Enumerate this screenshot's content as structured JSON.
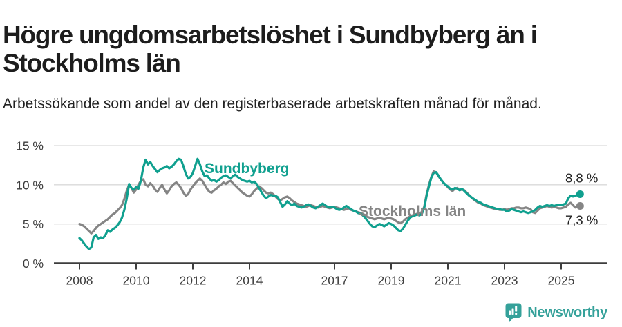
{
  "header": {
    "title": "Högre ungdomsarbetslöshet i Sundbyberg än i Stockholms län",
    "subtitle": "Arbetssökande som andel av den registerbaserade arbetskraften månad för månad."
  },
  "footer": {
    "brand": "Newsworthy"
  },
  "colors": {
    "accent_teal": "#10A08F",
    "series_gray": "#858585",
    "axis_text": "#3d3d3d",
    "gridline": "#d9d9d9",
    "end_label_text": "#222222",
    "brand_teal": "#35a19a",
    "title_text": "#1d1d1d"
  },
  "chart_data": {
    "type": "line",
    "title": "Högre ungdomsarbetslöshet i Sundbyberg än i Stockholms län",
    "subtitle": "Arbetssökande som andel av den registerbaserade arbetskraften månad för månad.",
    "x_unit": "month",
    "x_range": [
      "2008-01",
      "2025-09"
    ],
    "ylim": [
      0,
      15
    ],
    "grid": true,
    "ytick_values": [
      0,
      5,
      10,
      15
    ],
    "ytick_labels": [
      "0 %",
      "5 %",
      "10 %",
      "15 %"
    ],
    "xticks": [
      2008,
      2010,
      2012,
      2014,
      2017,
      2019,
      2021,
      2023,
      2025
    ],
    "series": [
      {
        "name": "Stockholms län",
        "color": "#858585",
        "end_label": "7,3 %",
        "end_value": 7.3,
        "values": [
          5.0,
          4.9,
          4.7,
          4.4,
          4.1,
          3.8,
          4.1,
          4.5,
          4.8,
          5.0,
          5.2,
          5.4,
          5.6,
          5.9,
          6.2,
          6.4,
          6.7,
          7.0,
          7.4,
          8.2,
          9.2,
          10.0,
          9.6,
          9.0,
          9.4,
          10.0,
          10.5,
          10.7,
          10.0,
          9.8,
          10.2,
          9.9,
          9.4,
          9.1,
          9.6,
          10.0,
          9.4,
          8.9,
          9.3,
          9.8,
          10.1,
          10.3,
          10.0,
          9.6,
          9.0,
          8.6,
          8.8,
          9.4,
          9.8,
          10.2,
          10.5,
          10.8,
          10.5,
          10.0,
          9.5,
          9.1,
          9.0,
          9.3,
          9.5,
          9.8,
          10.0,
          10.3,
          10.1,
          10.4,
          10.5,
          10.2,
          9.9,
          9.6,
          9.3,
          9.0,
          8.8,
          8.6,
          8.5,
          8.8,
          9.2,
          9.5,
          9.8,
          9.6,
          9.3,
          9.0,
          8.9,
          9.0,
          8.8,
          8.5,
          8.2,
          8.0,
          8.2,
          8.4,
          8.5,
          8.3,
          8.0,
          7.8,
          7.6,
          7.5,
          7.4,
          7.3,
          7.2,
          7.3,
          7.4,
          7.3,
          7.2,
          7.1,
          7.2,
          7.3,
          7.2,
          7.1,
          7.0,
          7.1,
          7.2,
          7.1,
          7.0,
          6.9,
          6.8,
          6.9,
          7.0,
          6.8,
          6.7,
          6.6,
          6.5,
          6.4,
          6.3,
          6.1,
          5.9,
          5.8,
          5.7,
          5.6,
          5.7,
          5.8,
          5.7,
          5.6,
          5.7,
          5.8,
          5.7,
          5.6,
          5.4,
          5.2,
          5.1,
          5.3,
          5.6,
          5.8,
          6.0,
          6.1,
          6.2,
          6.3,
          6.4,
          6.5,
          7.2,
          8.8,
          10.0,
          11.0,
          11.7,
          11.6,
          11.1,
          10.7,
          10.3,
          10.0,
          9.7,
          9.4,
          9.2,
          9.5,
          9.6,
          9.3,
          9.4,
          9.3,
          9.0,
          8.7,
          8.4,
          8.1,
          7.9,
          7.7,
          7.6,
          7.4,
          7.3,
          7.2,
          7.1,
          7.0,
          6.9,
          6.9,
          6.8,
          6.8,
          6.9,
          6.8,
          6.9,
          7.0,
          7.0,
          7.1,
          7.1,
          7.0,
          7.0,
          7.1,
          7.0,
          6.9,
          6.5,
          6.4,
          6.7,
          7.0,
          7.1,
          7.2,
          7.3,
          7.2,
          7.1,
          7.2,
          7.1,
          7.0,
          7.0,
          7.1,
          7.2,
          7.5,
          7.7,
          7.4,
          7.1,
          7.2,
          7.3
        ]
      },
      {
        "name": "Sundbyberg",
        "color": "#10A08F",
        "end_label": "8,8 %",
        "end_value": 8.8,
        "values": [
          3.2,
          2.9,
          2.5,
          2.1,
          1.8,
          2.0,
          3.3,
          3.6,
          3.1,
          3.3,
          3.2,
          3.6,
          4.2,
          4.0,
          4.3,
          4.5,
          4.8,
          5.2,
          5.8,
          6.8,
          8.2,
          10.1,
          9.6,
          9.4,
          9.7,
          9.5,
          10.5,
          12.2,
          13.2,
          12.6,
          12.9,
          12.4,
          12.0,
          11.6,
          11.9,
          12.1,
          12.2,
          12.4,
          12.1,
          12.3,
          12.6,
          13.0,
          13.3,
          13.2,
          12.4,
          11.4,
          10.8,
          11.0,
          11.5,
          12.4,
          13.3,
          12.6,
          11.7,
          11.1,
          11.2,
          10.8,
          10.5,
          10.6,
          10.4,
          10.6,
          10.9,
          11.1,
          11.2,
          11.0,
          10.8,
          11.1,
          11.3,
          11.0,
          10.8,
          10.6,
          10.5,
          10.4,
          10.5,
          10.3,
          10.4,
          10.1,
          9.6,
          9.1,
          8.6,
          8.3,
          8.5,
          8.7,
          8.6,
          8.6,
          8.4,
          7.8,
          7.2,
          7.5,
          7.9,
          7.6,
          7.4,
          7.6,
          7.3,
          7.2,
          7.1,
          7.2,
          7.4,
          7.5,
          7.3,
          7.1,
          7.0,
          7.2,
          7.4,
          7.6,
          7.4,
          7.2,
          7.1,
          7.2,
          7.1,
          6.9,
          6.8,
          6.9,
          7.1,
          7.3,
          7.1,
          6.9,
          6.7,
          6.6,
          6.4,
          6.3,
          6.1,
          5.8,
          5.4,
          5.0,
          4.7,
          4.6,
          4.8,
          5.0,
          4.9,
          4.7,
          4.9,
          5.1,
          5.0,
          4.8,
          4.5,
          4.2,
          4.1,
          4.4,
          4.9,
          5.4,
          5.8,
          6.0,
          6.1,
          6.2,
          6.1,
          6.3,
          7.0,
          8.6,
          9.8,
          10.9,
          11.5,
          11.6,
          11.2,
          10.7,
          10.3,
          10.0,
          9.8,
          9.5,
          9.4,
          9.6,
          9.5,
          9.3,
          9.5,
          9.2,
          8.9,
          8.6,
          8.4,
          8.2,
          8.0,
          7.8,
          7.7,
          7.5,
          7.4,
          7.3,
          7.2,
          7.1,
          7.0,
          6.9,
          6.9,
          6.8,
          6.8,
          6.6,
          6.7,
          6.9,
          6.8,
          6.7,
          6.6,
          6.5,
          6.6,
          6.5,
          6.4,
          6.5,
          6.6,
          6.8,
          7.1,
          7.3,
          7.2,
          7.3,
          7.4,
          7.3,
          7.4,
          7.3,
          7.4,
          7.4,
          7.4,
          7.5,
          7.6,
          8.3,
          8.6,
          8.5,
          8.6,
          8.7,
          8.8
        ]
      }
    ]
  }
}
